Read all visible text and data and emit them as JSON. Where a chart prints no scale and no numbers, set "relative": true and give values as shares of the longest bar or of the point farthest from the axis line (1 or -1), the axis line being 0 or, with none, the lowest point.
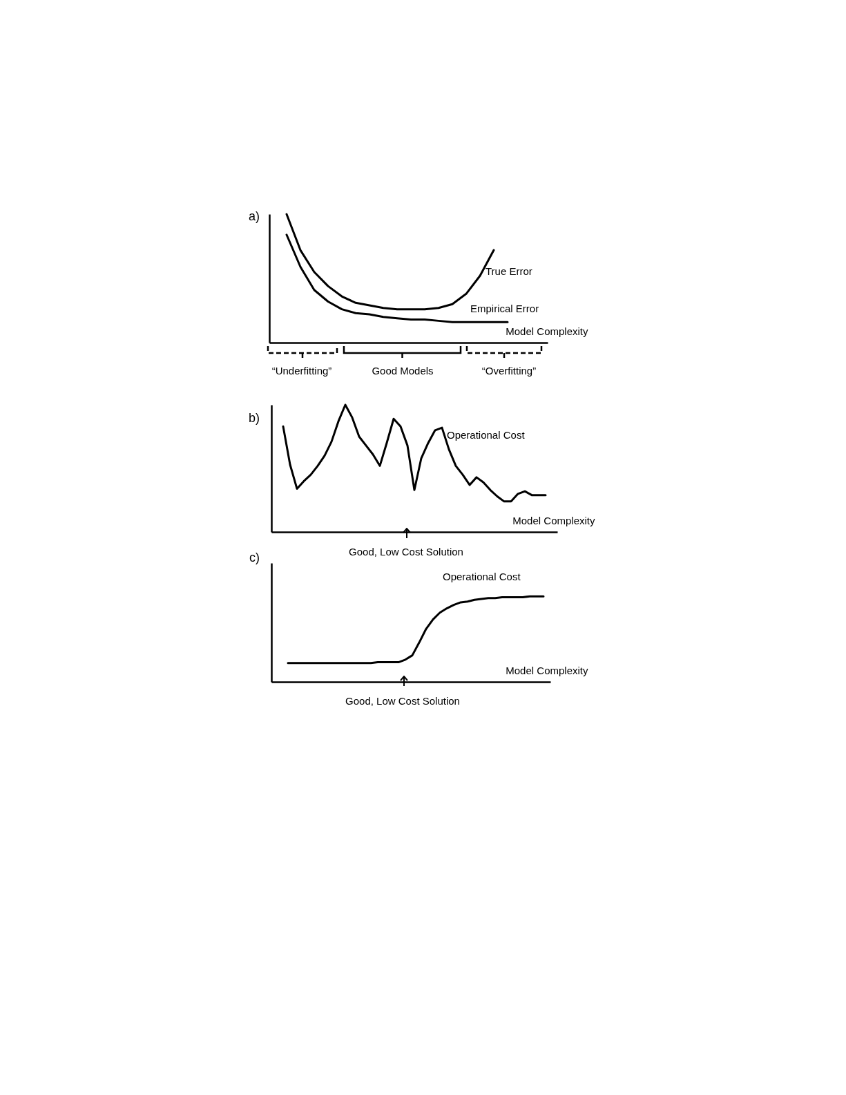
{
  "chart_data": [
    {
      "type": "line",
      "title": "a)",
      "xlabel": "Model Complexity",
      "relative": true,
      "categories": [
        null,
        null,
        null,
        null,
        null,
        null,
        null,
        null,
        null,
        null,
        null,
        null,
        null,
        null,
        null,
        null,
        null
      ],
      "series": [
        {
          "name": "True Error",
          "color": "#000000",
          "values": [
            1.0,
            0.72,
            0.55,
            0.44,
            0.36,
            0.31,
            0.29,
            0.27,
            0.26,
            0.26,
            0.26,
            0.27,
            0.3,
            0.38,
            0.52,
            0.72,
            null
          ]
        },
        {
          "name": "Empirical Error",
          "color": "#000000",
          "values": [
            0.84,
            0.59,
            0.41,
            0.32,
            0.26,
            0.23,
            0.22,
            0.2,
            0.19,
            0.18,
            0.18,
            0.17,
            0.16,
            0.16,
            0.16,
            0.16,
            0.16
          ]
        }
      ],
      "annotations": [
        "“Underfitting”",
        "Good Models",
        "“Overfitting”"
      ]
    },
    {
      "type": "line",
      "title": "b)",
      "xlabel": "Model Complexity",
      "relative": true,
      "categories": [
        null,
        null,
        null,
        null,
        null,
        null,
        null,
        null,
        null,
        null,
        null,
        null,
        null,
        null,
        null,
        null,
        null,
        null,
        null,
        null,
        null,
        null,
        null,
        null,
        null,
        null,
        null,
        null,
        null,
        null,
        null,
        null,
        null,
        null,
        null,
        null,
        null,
        null,
        null
      ],
      "series": [
        {
          "name": "Operational Cost",
          "color": "#000000",
          "values": [
            0.83,
            0.53,
            0.34,
            0.4,
            0.45,
            0.52,
            0.6,
            0.71,
            0.87,
            1.0,
            0.9,
            0.75,
            0.68,
            0.61,
            0.52,
            0.7,
            0.89,
            0.83,
            0.68,
            0.33,
            0.58,
            0.7,
            0.8,
            0.82,
            0.65,
            0.52,
            0.45,
            0.37,
            0.43,
            0.39,
            0.33,
            0.28,
            0.24,
            0.24,
            0.3,
            0.32,
            0.29,
            0.29,
            0.29
          ]
        }
      ],
      "annotations": [
        "Good, Low Cost Solution"
      ]
    },
    {
      "type": "line",
      "title": "c)",
      "xlabel": "Model Complexity",
      "relative": true,
      "categories": [
        null,
        null,
        null,
        null,
        null,
        null,
        null,
        null,
        null,
        null,
        null,
        null,
        null,
        null,
        null,
        null,
        null,
        null,
        null,
        null,
        null,
        null,
        null,
        null,
        null,
        null,
        null,
        null,
        null,
        null,
        null,
        null,
        null,
        null,
        null,
        null,
        null,
        null
      ],
      "series": [
        {
          "name": "Operational Cost",
          "color": "#000000",
          "values": [
            0.22,
            0.22,
            0.22,
            0.22,
            0.22,
            0.22,
            0.22,
            0.22,
            0.22,
            0.22,
            0.22,
            0.22,
            0.22,
            0.23,
            0.23,
            0.23,
            0.23,
            0.26,
            0.31,
            0.46,
            0.62,
            0.73,
            0.81,
            0.86,
            0.9,
            0.93,
            0.94,
            0.96,
            0.97,
            0.98,
            0.98,
            0.99,
            0.99,
            0.99,
            0.99,
            1.0,
            1.0,
            1.0
          ]
        }
      ],
      "annotations": [
        "Good, Low Cost Solution"
      ]
    }
  ]
}
